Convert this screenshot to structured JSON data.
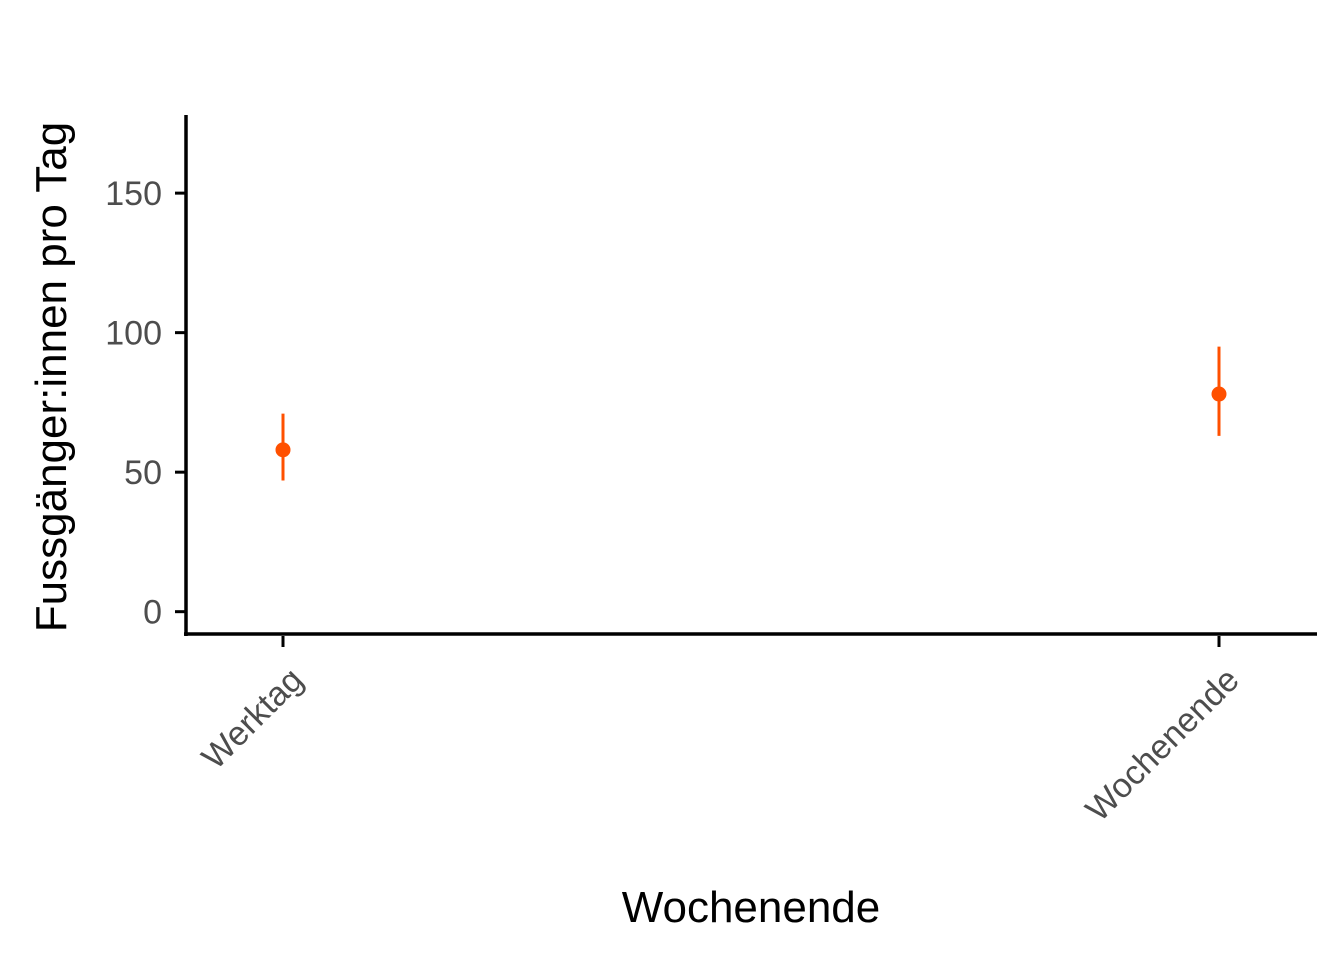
{
  "chart_data": {
    "type": "scatter",
    "xlabel": "Wochenende",
    "ylabel": "Fussgänger:innen pro Tag",
    "categories": [
      "Werktag",
      "Wochenende"
    ],
    "series": [
      {
        "values": [
          58,
          78
        ],
        "lower": [
          47,
          63
        ],
        "upper": [
          71,
          95
        ]
      }
    ],
    "yticks": [
      0,
      50,
      100,
      150
    ],
    "ylim": [
      -8,
      178
    ],
    "grid": false,
    "legend": "none",
    "point_color": "#FF5000"
  }
}
